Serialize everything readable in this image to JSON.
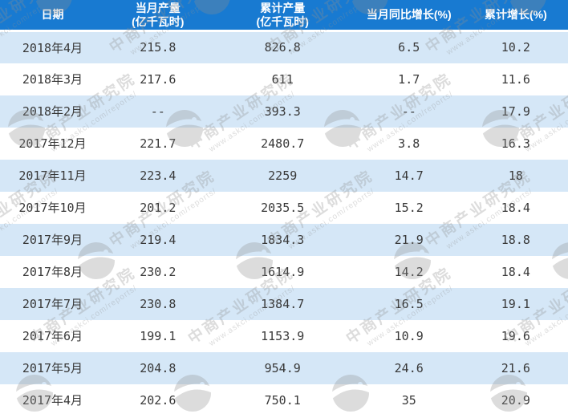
{
  "chart_data": {
    "type": "table",
    "columns": [
      {
        "title": "日期",
        "subtitle": ""
      },
      {
        "title": "当月产量",
        "subtitle": "(亿千瓦时)"
      },
      {
        "title": "累计产量",
        "subtitle": "(亿千瓦时)"
      },
      {
        "title": "当月同比增长(%)",
        "subtitle": ""
      },
      {
        "title": "累计增长(%)",
        "subtitle": ""
      }
    ],
    "rows": [
      [
        "2018年4月",
        "215.8",
        "826.8",
        "6.5",
        "10.2"
      ],
      [
        "2018年3月",
        "217.6",
        "611",
        "1.7",
        "11.6"
      ],
      [
        "2018年2月",
        "--",
        "393.3",
        "--",
        "17.9"
      ],
      [
        "2017年12月",
        "221.7",
        "2480.7",
        "3.8",
        "16.3"
      ],
      [
        "2017年11月",
        "223.4",
        "2259",
        "14.7",
        "18"
      ],
      [
        "2017年10月",
        "201.2",
        "2035.5",
        "15.2",
        "18.4"
      ],
      [
        "2017年9月",
        "219.4",
        "1834.3",
        "21.9",
        "18.8"
      ],
      [
        "2017年8月",
        "230.2",
        "1614.9",
        "14.2",
        "18.4"
      ],
      [
        "2017年7月",
        "230.8",
        "1384.7",
        "16.5",
        "19.1"
      ],
      [
        "2017年6月",
        "199.1",
        "1153.9",
        "10.9",
        "19.6"
      ],
      [
        "2017年5月",
        "204.8",
        "954.9",
        "24.6",
        "21.6"
      ],
      [
        "2017年4月",
        "202.6",
        "750.1",
        "35",
        "20.9"
      ]
    ]
  },
  "watermark": {
    "brand_text": "中商产业研究院",
    "url_text": "www.askci.com/reports/"
  },
  "colors": {
    "header_bg": "#187ad1",
    "row_alt_bg": "#d5e7f7",
    "row_bg": "#ffffff",
    "header_text": "#ffffff",
    "body_text": "#383838",
    "watermark_gray": "#8f8f8f"
  }
}
